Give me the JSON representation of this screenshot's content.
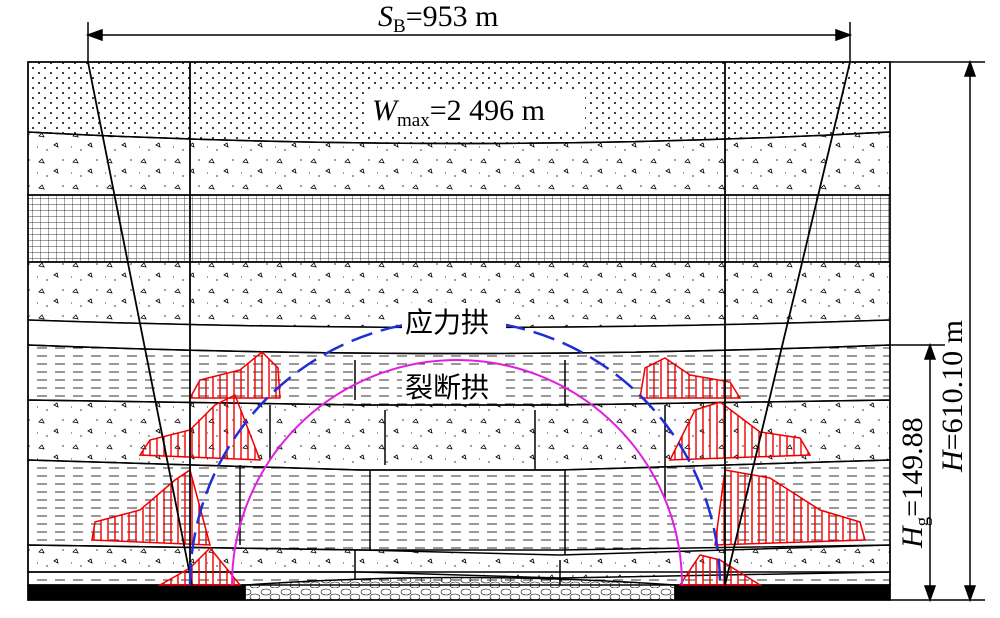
{
  "dimensions": {
    "span": {
      "symbol": "S",
      "subscript": "B",
      "value": "=953 m"
    },
    "max_width": {
      "symbol": "W",
      "subscript": "max",
      "value": "=2 496 m"
    },
    "fracture_height": {
      "symbol": "H",
      "subscript": "g",
      "value": "=149.88"
    },
    "total_height": {
      "symbol": "H",
      "value": "=610.10 m"
    }
  },
  "arches": {
    "stress_arch": "应力拱",
    "fracture_arch": "裂断拱"
  }
}
